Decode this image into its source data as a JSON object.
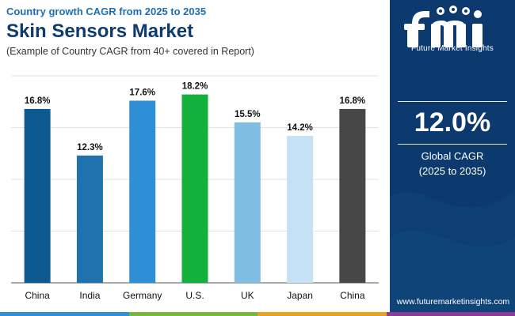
{
  "header": {
    "kicker": "Country growth CAGR from 2025 to 2035",
    "title": "Skin Sensors Market",
    "subtitle": "(Example of Country CAGR from 40+ covered in Report)"
  },
  "chart_data": {
    "type": "bar",
    "categories": [
      "China",
      "India",
      "Germany",
      "U.S.",
      "UK",
      "Japan",
      "China"
    ],
    "values": [
      16.8,
      12.3,
      17.6,
      18.2,
      15.5,
      14.2,
      16.8
    ],
    "value_labels": [
      "16.8%",
      "12.3%",
      "17.6%",
      "18.2%",
      "15.5%",
      "14.2%",
      "16.8%"
    ],
    "colors": [
      "#0d5a91",
      "#1f72ae",
      "#2f8fd6",
      "#13b13b",
      "#80bde3",
      "#c5e2f4",
      "#474747"
    ],
    "ylim": [
      0,
      20
    ],
    "grid": true,
    "title": "",
    "xlabel": "",
    "ylabel": ""
  },
  "panel": {
    "brand": "Future Market Insights",
    "cagr_value": "12.0%",
    "cagr_label_1": "Global CAGR",
    "cagr_label_2": "(2025 to 2035)",
    "website": "www.futuremarketinsights.com",
    "background": "#0c3a6e"
  },
  "bottom_bar_colors": [
    "#2f8fd6",
    "#77b83a",
    "#e7a223",
    "#8d3b96"
  ]
}
